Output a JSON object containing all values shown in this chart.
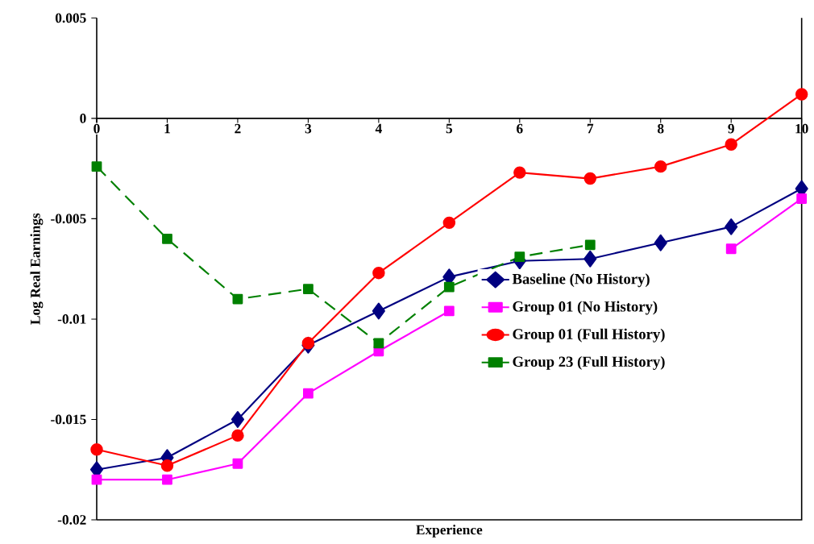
{
  "chart_data": {
    "type": "line",
    "xlabel": "Experience",
    "ylabel": "Log Real Earnings",
    "x": [
      0,
      1,
      2,
      3,
      4,
      5,
      6,
      7,
      8,
      9,
      10
    ],
    "xlim": [
      0,
      10
    ],
    "xticks": [
      0,
      1,
      2,
      3,
      4,
      5,
      6,
      7,
      8,
      9,
      10
    ],
    "ylim": [
      -0.02,
      0.005
    ],
    "yticks": [
      -0.02,
      -0.015,
      -0.01,
      -0.005,
      0,
      0.005
    ],
    "grid": false,
    "legend": "right",
    "series": [
      {
        "name": "Baseline (No History)",
        "color": "#000080",
        "marker": "diamond",
        "line_style": "solid",
        "values": [
          -0.0175,
          -0.0169,
          -0.015,
          -0.0113,
          -0.0096,
          -0.0079,
          -0.0071,
          -0.007,
          -0.0062,
          -0.0054,
          -0.0035
        ]
      },
      {
        "name": "Group 01 (No History)",
        "color": "#ff00ff",
        "marker": "square",
        "line_style": "solid",
        "values": [
          -0.018,
          -0.018,
          -0.0172,
          -0.0137,
          -0.0116,
          -0.0096,
          null,
          null,
          null,
          -0.0065,
          -0.004
        ]
      },
      {
        "name": "Group 01 (Full History)",
        "color": "#ff0000",
        "marker": "circle",
        "line_style": "solid",
        "values": [
          -0.0165,
          -0.0173,
          -0.0158,
          -0.0112,
          -0.0077,
          -0.0052,
          -0.0027,
          -0.003,
          -0.0024,
          -0.0013,
          0.0012
        ]
      },
      {
        "name": "Group 23 (Full History)",
        "color": "#008000",
        "marker": "square",
        "line_style": "dashed",
        "values": [
          -0.0024,
          -0.006,
          -0.009,
          -0.0085,
          -0.0112,
          -0.0084,
          -0.0069,
          -0.0063,
          null,
          null,
          null
        ]
      }
    ]
  }
}
